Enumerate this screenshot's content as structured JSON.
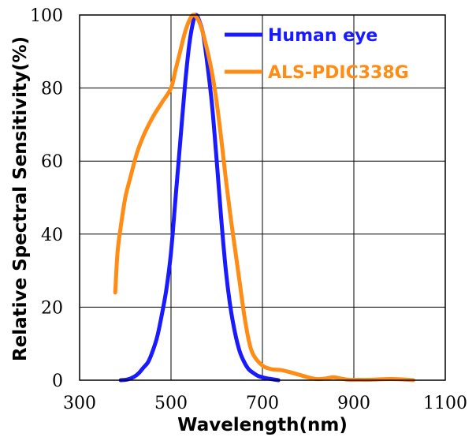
{
  "chart_data": {
    "type": "line",
    "xlabel": "Wavelength(nm)",
    "ylabel": "Relative Spectral Sensitivity(%)",
    "xlim": [
      300,
      1100
    ],
    "ylim": [
      0,
      100
    ],
    "xticks": [
      300,
      500,
      700,
      900,
      1100
    ],
    "yticks": [
      0,
      20,
      40,
      60,
      80,
      100
    ],
    "grid": true,
    "legend_position": "top-right",
    "series": [
      {
        "name": "Human eye",
        "color": "#1a1aff",
        "x": [
          390,
          405,
          420,
          430,
          440,
          450,
          460,
          470,
          480,
          490,
          500,
          510,
          520,
          530,
          540,
          550,
          555,
          560,
          570,
          580,
          590,
          600,
          610,
          620,
          630,
          640,
          650,
          660,
          670,
          680,
          690,
          700,
          710,
          720,
          735
        ],
        "y": [
          0,
          0.2,
          1,
          2,
          3.5,
          5,
          8,
          12,
          18,
          25,
          35,
          50,
          65,
          80,
          92,
          99,
          100,
          99,
          95,
          86,
          75,
          60,
          44,
          30,
          20,
          13,
          8,
          5,
          3,
          2,
          1.2,
          0.8,
          0.5,
          0.3,
          0
        ]
      },
      {
        "name": "ALS-PDIC338G",
        "color": "#ff8c14",
        "x": [
          378,
          383,
          390,
          400,
          410,
          425,
          440,
          460,
          480,
          500,
          510,
          520,
          530,
          540,
          548,
          555,
          562,
          570,
          580,
          590,
          600,
          610,
          620,
          630,
          640,
          650,
          660,
          670,
          680,
          700,
          720,
          740,
          760,
          780,
          800,
          820,
          840,
          855,
          870,
          890,
          910,
          930,
          950,
          970,
          990,
          1010,
          1030
        ],
        "y": [
          24,
          35,
          42,
          50,
          55,
          62,
          67,
          72,
          76,
          80,
          85,
          90,
          95,
          98.5,
          100,
          99.5,
          98,
          95,
          90,
          84,
          76,
          66,
          55,
          45,
          36,
          27,
          18,
          11,
          7,
          4,
          3,
          2.8,
          2.2,
          1.5,
          0.8,
          0.3,
          0.5,
          0.8,
          0.5,
          0.1,
          0.1,
          0.1,
          0.2,
          0.3,
          0.3,
          0.2,
          0
        ]
      }
    ]
  }
}
